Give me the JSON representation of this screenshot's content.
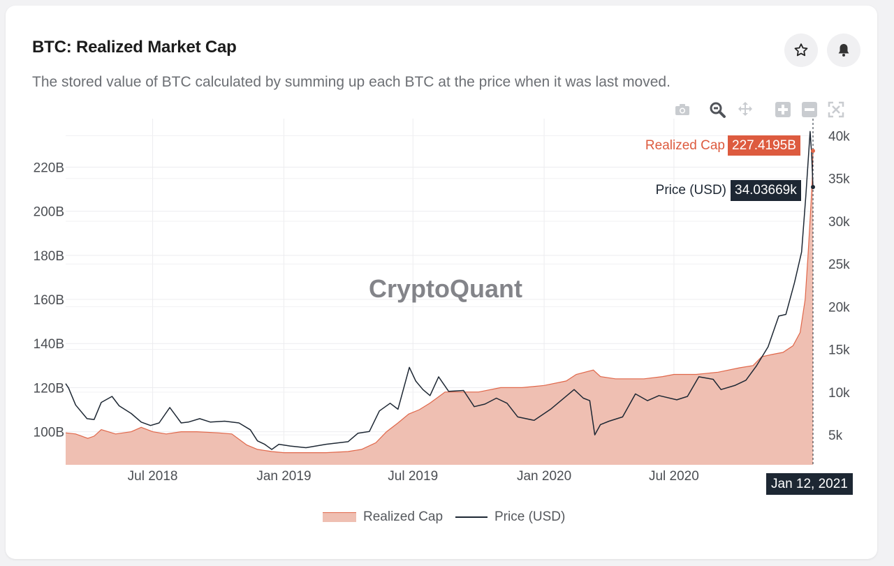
{
  "header": {
    "title": "BTC: Realized Market Cap",
    "subtitle": "The stored value of BTC calculated by summing up each BTC at the price when it was last moved."
  },
  "actions": {
    "favorite_icon": "star-icon",
    "alert_icon": "bell-icon"
  },
  "toolbar": {
    "icons": [
      "camera-icon",
      "zoom-icon",
      "pan-icon",
      "zoom-in-icon",
      "zoom-out-icon",
      "autoscale-icon"
    ]
  },
  "watermark": "CryptoQuant",
  "tooltips": {
    "realized_label": "Realized Cap",
    "realized_value": "227.4195B",
    "price_label": "Price (USD)",
    "price_value": "34.03669k",
    "date": "Jan 12, 2021"
  },
  "legend": {
    "realized": "Realized Cap",
    "price": "Price (USD)"
  },
  "colors": {
    "realized_fill": "#efbfb2",
    "realized_line": "#e0674a",
    "price_line": "#1d2733",
    "tooltip_realized_bg": "#dd5b3f",
    "tooltip_price_bg": "#1d2733"
  },
  "chart_data": {
    "type": "area",
    "title": "BTC: Realized Market Cap",
    "x_range": [
      "2018-03-01",
      "2021-01-12"
    ],
    "x_ticks": [
      "Jul 2018",
      "Jan 2019",
      "Jul 2019",
      "Jan 2020",
      "Jul 2020"
    ],
    "y_left": {
      "label": "",
      "ticks": [
        "100B",
        "120B",
        "140B",
        "160B",
        "180B",
        "200B",
        "220B"
      ],
      "range_billions": [
        85,
        242
      ]
    },
    "y_right": {
      "label": "",
      "ticks": [
        "5k",
        "10k",
        "15k",
        "20k",
        "25k",
        "30k",
        "35k",
        "40k"
      ],
      "range_k": [
        1.5,
        42
      ]
    },
    "grid": true,
    "legend_position": "bottom",
    "series": [
      {
        "name": "Realized Cap",
        "axis": "left",
        "unit": "B",
        "x": [
          "2018-03-01",
          "2018-03-15",
          "2018-04-01",
          "2018-04-10",
          "2018-04-20",
          "2018-05-10",
          "2018-06-01",
          "2018-06-15",
          "2018-07-01",
          "2018-07-20",
          "2018-08-10",
          "2018-09-01",
          "2018-10-01",
          "2018-10-20",
          "2018-11-10",
          "2018-11-25",
          "2018-12-15",
          "2019-01-01",
          "2019-02-01",
          "2019-03-01",
          "2019-04-01",
          "2019-04-20",
          "2019-05-10",
          "2019-05-25",
          "2019-06-10",
          "2019-06-25",
          "2019-07-10",
          "2019-07-25",
          "2019-08-15",
          "2019-09-01",
          "2019-10-01",
          "2019-11-01",
          "2019-12-01",
          "2020-01-01",
          "2020-02-01",
          "2020-02-15",
          "2020-03-10",
          "2020-03-20",
          "2020-04-10",
          "2020-05-01",
          "2020-05-20",
          "2020-06-15",
          "2020-07-01",
          "2020-08-01",
          "2020-09-01",
          "2020-10-01",
          "2020-10-20",
          "2020-11-01",
          "2020-11-15",
          "2020-12-01",
          "2020-12-15",
          "2020-12-25",
          "2021-01-01",
          "2021-01-05",
          "2021-01-09",
          "2021-01-11",
          "2021-01-12"
        ],
        "values": [
          99.5,
          99,
          97,
          98,
          101,
          99,
          100,
          102,
          100,
          99,
          100,
          100,
          99.5,
          99,
          94,
          92,
          91,
          90.5,
          90.5,
          90.5,
          91,
          92,
          95,
          100,
          104,
          108,
          110,
          113,
          118,
          118,
          118,
          120,
          120,
          121,
          123,
          126,
          128,
          125,
          124,
          124,
          124,
          125,
          126,
          126,
          127,
          129,
          130,
          134,
          135,
          136,
          139,
          145,
          160,
          180,
          202,
          215,
          227.4
        ]
      },
      {
        "name": "Price (USD)",
        "axis": "right",
        "unit": "k",
        "x": [
          "2018-03-01",
          "2018-03-05",
          "2018-03-15",
          "2018-03-31",
          "2018-04-10",
          "2018-04-20",
          "2018-05-05",
          "2018-05-15",
          "2018-06-01",
          "2018-06-15",
          "2018-06-28",
          "2018-07-10",
          "2018-07-25",
          "2018-08-10",
          "2018-08-20",
          "2018-09-05",
          "2018-09-20",
          "2018-10-10",
          "2018-10-30",
          "2018-11-15",
          "2018-11-25",
          "2018-12-05",
          "2018-12-15",
          "2018-12-25",
          "2019-01-10",
          "2019-02-01",
          "2019-03-01",
          "2019-04-01",
          "2019-04-15",
          "2019-05-01",
          "2019-05-15",
          "2019-05-30",
          "2019-06-10",
          "2019-06-26",
          "2019-07-05",
          "2019-07-15",
          "2019-07-25",
          "2019-08-06",
          "2019-08-20",
          "2019-09-10",
          "2019-09-25",
          "2019-10-10",
          "2019-10-26",
          "2019-11-10",
          "2019-11-25",
          "2019-12-18",
          "2020-01-10",
          "2020-02-12",
          "2020-02-25",
          "2020-03-05",
          "2020-03-12",
          "2020-03-20",
          "2020-04-01",
          "2020-04-20",
          "2020-05-08",
          "2020-05-25",
          "2020-06-10",
          "2020-07-05",
          "2020-07-20",
          "2020-08-05",
          "2020-08-25",
          "2020-09-05",
          "2020-09-25",
          "2020-10-10",
          "2020-10-25",
          "2020-11-10",
          "2020-11-25",
          "2020-12-05",
          "2020-12-17",
          "2020-12-27",
          "2021-01-02",
          "2021-01-08",
          "2021-01-10",
          "2021-01-12"
        ],
        "values": [
          11,
          10.5,
          8.5,
          6.9,
          6.8,
          8.8,
          9.5,
          8.4,
          7.5,
          6.5,
          6.1,
          6.4,
          8.2,
          6.4,
          6.5,
          6.9,
          6.5,
          6.6,
          6.4,
          5.6,
          4.3,
          3.9,
          3.3,
          3.9,
          3.7,
          3.5,
          3.9,
          4.2,
          5.2,
          5.4,
          7.8,
          8.7,
          8.0,
          12.9,
          11.3,
          10.3,
          9.6,
          11.8,
          10.1,
          10.2,
          8.3,
          8.6,
          9.3,
          8.7,
          7.1,
          6.7,
          8.0,
          10.3,
          9.3,
          9.0,
          5.0,
          6.2,
          6.6,
          7.1,
          9.8,
          9.0,
          9.6,
          9.1,
          9.5,
          11.8,
          11.5,
          10.3,
          10.8,
          11.4,
          13.1,
          15.3,
          18.9,
          19.1,
          22.8,
          26.4,
          33.0,
          40.5,
          38.0,
          34.0
        ]
      }
    ]
  }
}
